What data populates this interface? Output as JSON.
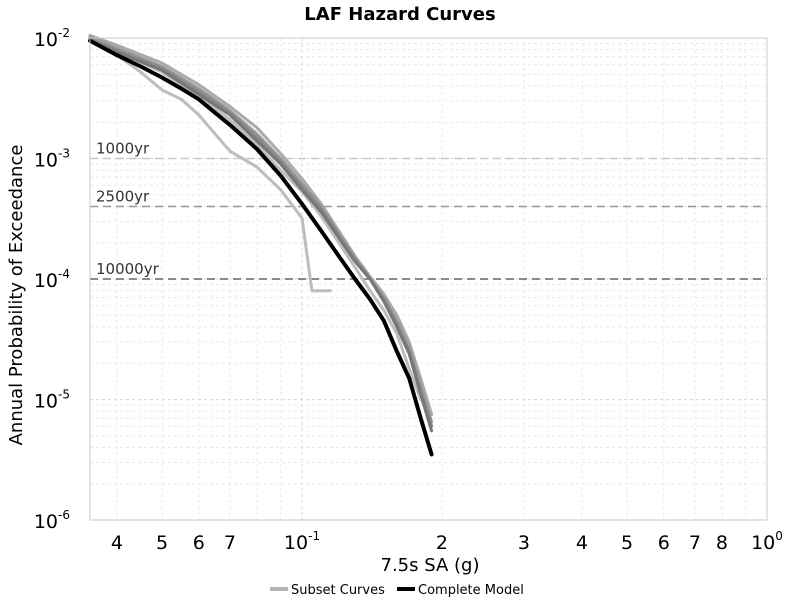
{
  "chart_data": {
    "type": "line",
    "title": "LAF Hazard Curves",
    "xlabel": "7.5s SA (g)",
    "ylabel": "Annual Probability of Exceedance",
    "x_scale": "log",
    "y_scale": "log",
    "xlim": [
      0.035,
      1.0
    ],
    "ylim": [
      1e-06,
      0.01
    ],
    "grid": true,
    "x_ticks": [
      {
        "value": 0.04,
        "label": "4",
        "sup": ""
      },
      {
        "value": 0.05,
        "label": "5",
        "sup": ""
      },
      {
        "value": 0.06,
        "label": "6",
        "sup": ""
      },
      {
        "value": 0.07,
        "label": "7",
        "sup": ""
      },
      {
        "value": 0.1,
        "label": "10",
        "sup": "-1"
      },
      {
        "value": 0.2,
        "label": "2",
        "sup": ""
      },
      {
        "value": 0.3,
        "label": "3",
        "sup": ""
      },
      {
        "value": 0.4,
        "label": "4",
        "sup": ""
      },
      {
        "value": 0.5,
        "label": "5",
        "sup": ""
      },
      {
        "value": 0.6,
        "label": "6",
        "sup": ""
      },
      {
        "value": 0.7,
        "label": "7",
        "sup": ""
      },
      {
        "value": 0.8,
        "label": "8",
        "sup": ""
      },
      {
        "value": 1.0,
        "label": "10",
        "sup": "0"
      }
    ],
    "y_ticks": [
      {
        "value": 0.01,
        "label": "10",
        "sup": "-2"
      },
      {
        "value": 0.001,
        "label": "10",
        "sup": "-3"
      },
      {
        "value": 0.0001,
        "label": "10",
        "sup": "-4"
      },
      {
        "value": 1e-05,
        "label": "10",
        "sup": "-5"
      },
      {
        "value": 1e-06,
        "label": "10",
        "sup": "-6"
      }
    ],
    "reference_lines": [
      {
        "label": "1000yr",
        "y": 0.001,
        "color": "#c8c8c8"
      },
      {
        "label": "2500yr",
        "y": 0.0004,
        "color": "#969696"
      },
      {
        "label": "10000yr",
        "y": 0.0001,
        "color": "#646464"
      }
    ],
    "legend_position": "bottom",
    "legend": [
      {
        "label": "Subset Curves",
        "color": "#b4b4b4"
      },
      {
        "label": "Complete Model",
        "color": "#000000"
      }
    ],
    "series": [
      {
        "color": "#bdbdbd",
        "x": [
          0.035,
          0.04,
          0.045,
          0.05,
          0.055,
          0.06,
          0.065,
          0.07,
          0.08,
          0.09,
          0.1,
          0.105,
          0.11,
          0.115
        ],
        "y": [
          0.0095,
          0.0072,
          0.0052,
          0.0037,
          0.0031,
          0.0023,
          0.0016,
          0.00115,
          0.00085,
          0.00055,
          0.00032,
          8e-05,
          8e-05,
          8e-05
        ]
      },
      {
        "color": "#bdbdbd",
        "x": [
          0.035,
          0.04,
          0.05,
          0.06,
          0.07,
          0.08,
          0.09,
          0.1,
          0.11,
          0.12,
          0.13,
          0.14,
          0.15,
          0.16,
          0.17,
          0.18
        ],
        "y": [
          0.0095,
          0.0078,
          0.0052,
          0.0033,
          0.0021,
          0.0013,
          0.0008,
          0.00053,
          0.00033,
          0.0002,
          0.000125,
          8e-05,
          5.5e-05,
          3.5e-05,
          1.8e-05,
          1e-05
        ]
      },
      {
        "color": "#aaaaaa",
        "x": [
          0.035,
          0.04,
          0.05,
          0.06,
          0.07,
          0.08,
          0.09,
          0.1,
          0.11,
          0.12,
          0.13,
          0.14,
          0.15,
          0.16,
          0.17,
          0.18,
          0.19
        ],
        "y": [
          0.0105,
          0.0087,
          0.0062,
          0.0041,
          0.0027,
          0.0018,
          0.0011,
          0.00068,
          0.00042,
          0.00025,
          0.000155,
          0.000105,
          7.5e-05,
          5e-05,
          3e-05,
          1.5e-05,
          7.5e-06
        ]
      },
      {
        "color": "#999999",
        "x": [
          0.035,
          0.04,
          0.05,
          0.06,
          0.07,
          0.08,
          0.09,
          0.1,
          0.11,
          0.12,
          0.13,
          0.14,
          0.15,
          0.16,
          0.17,
          0.18,
          0.19
        ],
        "y": [
          0.0102,
          0.0082,
          0.0058,
          0.0038,
          0.0025,
          0.0016,
          0.001,
          0.00062,
          0.0004,
          0.00024,
          0.00015,
          0.0001,
          7e-05,
          4.5e-05,
          2.7e-05,
          1.3e-05,
          6.5e-06
        ]
      },
      {
        "color": "#888888",
        "x": [
          0.035,
          0.04,
          0.05,
          0.06,
          0.07,
          0.08,
          0.09,
          0.1,
          0.11,
          0.12,
          0.13,
          0.14,
          0.15,
          0.16,
          0.17,
          0.18,
          0.19
        ],
        "y": [
          0.0098,
          0.0079,
          0.0056,
          0.0036,
          0.0024,
          0.0015,
          0.00095,
          0.00058,
          0.00038,
          0.00023,
          0.000145,
          0.0001,
          6.8e-05,
          4.2e-05,
          2.5e-05,
          1.2e-05,
          6e-06
        ]
      },
      {
        "color": "#777777",
        "x": [
          0.035,
          0.04,
          0.05,
          0.06,
          0.07,
          0.08,
          0.09,
          0.1,
          0.11,
          0.12,
          0.13,
          0.14,
          0.15,
          0.16,
          0.17,
          0.18,
          0.19
        ],
        "y": [
          0.0096,
          0.0076,
          0.0054,
          0.0034,
          0.0023,
          0.0014,
          0.0009,
          0.00055,
          0.00036,
          0.00022,
          0.00014,
          0.0001,
          6.5e-05,
          4e-05,
          2.4e-05,
          1.1e-05,
          5.5e-06
        ]
      },
      {
        "color": "#000000",
        "x": [
          0.035,
          0.04,
          0.045,
          0.05,
          0.055,
          0.06,
          0.065,
          0.07,
          0.08,
          0.09,
          0.1,
          0.11,
          0.12,
          0.13,
          0.14,
          0.15,
          0.16,
          0.17,
          0.18,
          0.19
        ],
        "y": [
          0.0095,
          0.0072,
          0.0058,
          0.0047,
          0.0038,
          0.0031,
          0.0024,
          0.0019,
          0.0012,
          0.00072,
          0.00042,
          0.00025,
          0.000155,
          0.0001,
          6.8e-05,
          4.5e-05,
          2.5e-05,
          1.5e-05,
          7e-06,
          3.5e-06
        ]
      }
    ]
  }
}
